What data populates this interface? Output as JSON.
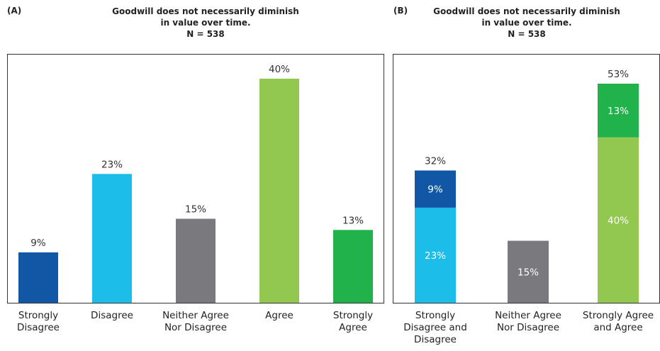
{
  "chart_data": [
    {
      "type": "bar",
      "panel_label": "(A)",
      "title_lines": [
        "Goodwill does not necessarily diminish",
        "in value over time.",
        "N = 538"
      ],
      "categories": [
        [
          "Strongly",
          "Disagree"
        ],
        [
          "Disagree"
        ],
        [
          "Neither Agree",
          "Nor Disagree"
        ],
        [
          "Agree"
        ],
        [
          "Strongly",
          "Agree"
        ]
      ],
      "values": [
        9,
        23,
        15,
        40,
        13
      ],
      "value_labels": [
        "9%",
        "23%",
        "15%",
        "40%",
        "13%"
      ],
      "colors": [
        "#1257a6",
        "#1dbde9",
        "#7a797e",
        "#92c850",
        "#21b24b"
      ],
      "ylim": [
        0,
        46
      ],
      "grid": false
    },
    {
      "type": "bar",
      "stacked": true,
      "panel_label": "(B)",
      "title_lines": [
        "Goodwill does not necessarily diminish",
        "in value over time.",
        "N = 538"
      ],
      "categories": [
        [
          "Strongly",
          "Disagree and",
          "Disagree"
        ],
        [
          "Neither Agree",
          "Nor Disagree"
        ],
        [
          "Strongly Agree",
          "and Agree"
        ]
      ],
      "totals": [
        32,
        15,
        53
      ],
      "total_labels": [
        "32%",
        "",
        "53%"
      ],
      "segments": [
        [
          {
            "value": 23,
            "label": "23%",
            "color": "#1dbde9"
          },
          {
            "value": 9,
            "label": "9%",
            "color": "#1257a6"
          }
        ],
        [
          {
            "value": 15,
            "label": "15%",
            "color": "#7a797e"
          }
        ],
        [
          {
            "value": 40,
            "label": "40%",
            "color": "#92c850"
          },
          {
            "value": 13,
            "label": "13%",
            "color": "#21b24b"
          }
        ]
      ],
      "ylim": [
        0,
        60
      ],
      "grid": false
    }
  ]
}
